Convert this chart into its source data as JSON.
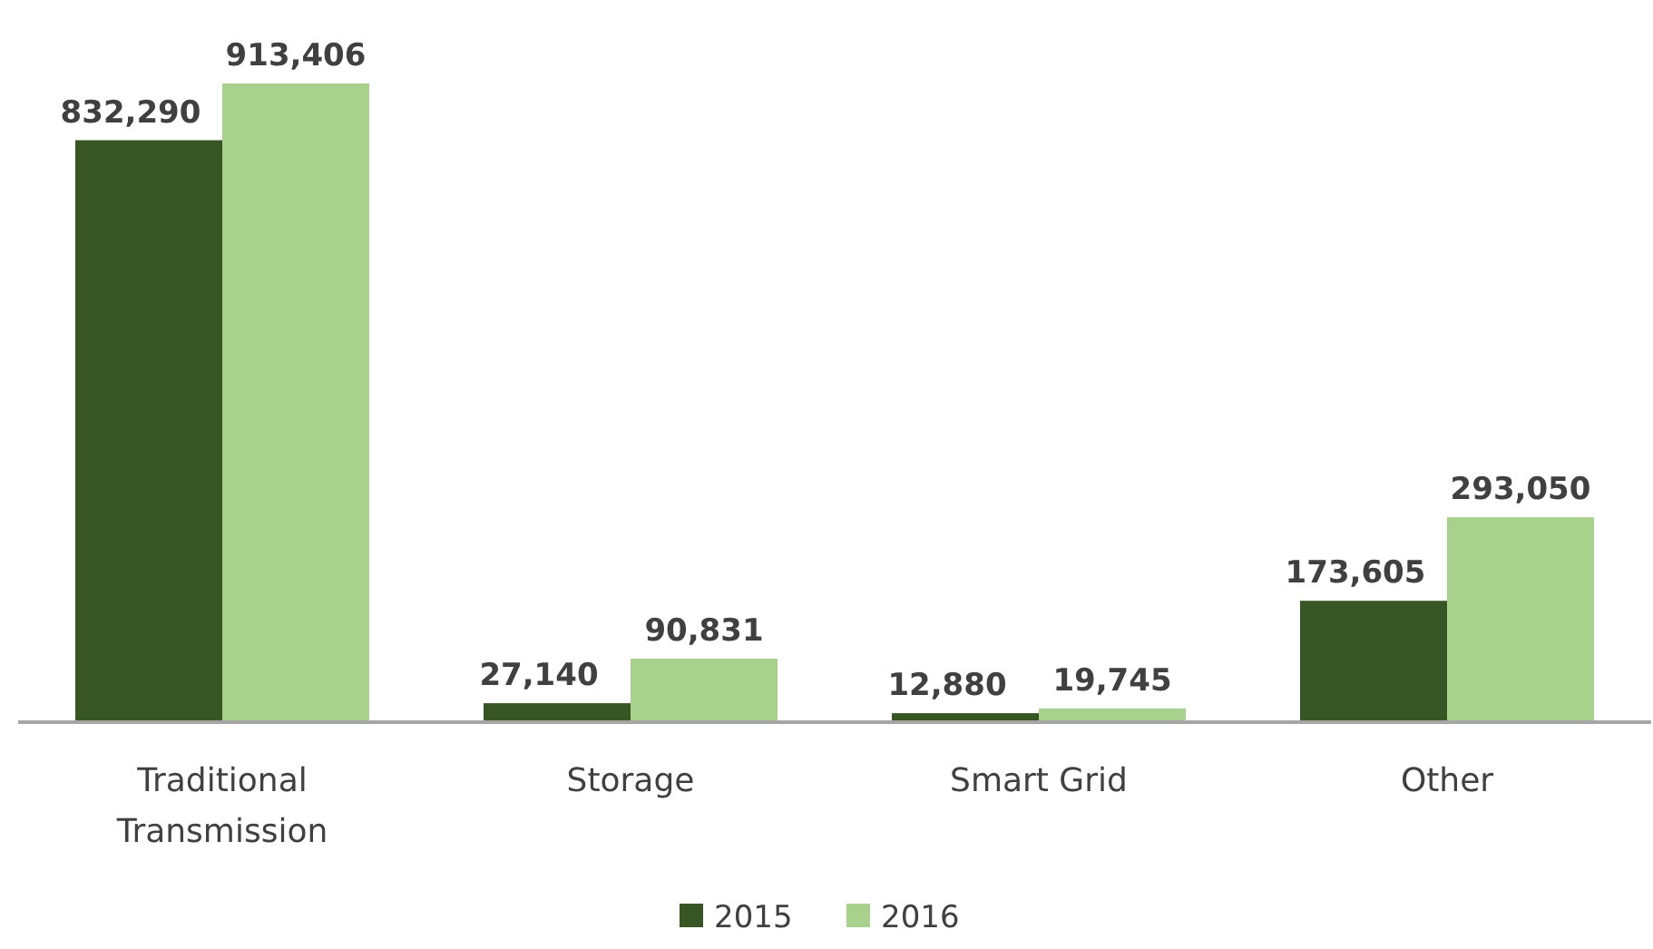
{
  "chart_data": {
    "type": "bar",
    "categories": [
      "Traditional Transmission",
      "Storage",
      "Smart Grid",
      "Other"
    ],
    "series": [
      {
        "name": "2015",
        "color": "#375623",
        "values": [
          832290,
          27140,
          12880,
          173605
        ],
        "value_labels": [
          "832,290",
          "27,140",
          "12,880",
          "173,605"
        ]
      },
      {
        "name": "2016",
        "color": "#a9d18e",
        "values": [
          913406,
          90831,
          19745,
          293050
        ],
        "value_labels": [
          "913,406",
          "90,831",
          "19,745",
          "293,050"
        ]
      }
    ],
    "legend": "bottom"
  }
}
